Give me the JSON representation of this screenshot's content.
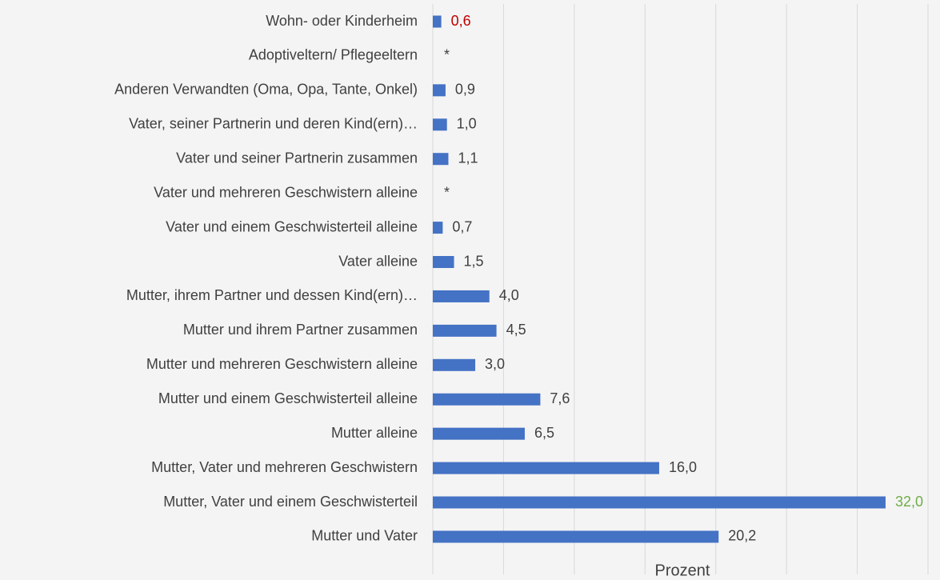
{
  "chart_data": {
    "type": "bar",
    "orientation": "horizontal",
    "x_label": "Prozent",
    "categories": [
      "Wohn- oder Kinderheim",
      "Adoptiveltern/ Pflegeeltern",
      "Anderen Verwandten (Oma, Opa, Tante, Onkel)",
      "Vater, seiner Partnerin und deren Kind(ern)…",
      "Vater und seiner Partnerin zusammen",
      "Vater und mehreren Geschwistern alleine",
      "Vater und einem Geschwisterteil alleine",
      "Vater alleine",
      "Mutter, ihrem Partner und dessen Kind(ern)…",
      "Mutter und ihrem Partner zusammen",
      "Mutter und mehreren Geschwistern alleine",
      "Mutter und einem Geschwisterteil alleine",
      "Mutter alleine",
      "Mutter, Vater und mehreren Geschwistern",
      "Mutter, Vater und einem Geschwisterteil",
      "Mutter und Vater"
    ],
    "values": [
      0.6,
      null,
      0.9,
      1.0,
      1.1,
      null,
      0.7,
      1.5,
      4.0,
      4.5,
      3.0,
      7.6,
      6.5,
      16.0,
      32.0,
      20.2
    ],
    "value_labels": [
      "0,6",
      "*",
      "0,9",
      "1,0",
      "1,1",
      "*",
      "0,7",
      "1,5",
      "4,0",
      "4,5",
      "3,0",
      "7,6",
      "6,5",
      "16,0",
      "32,0",
      "20,2"
    ],
    "value_label_colors": [
      "#c00000",
      "#404040",
      "#404040",
      "#404040",
      "#404040",
      "#404040",
      "#404040",
      "#404040",
      "#404040",
      "#404040",
      "#404040",
      "#404040",
      "#404040",
      "#404040",
      "#70ad47",
      "#404040"
    ],
    "color": "#4472c4",
    "xlim": [
      0,
      35
    ],
    "xticks": [
      0,
      5,
      10,
      15,
      20,
      25,
      30,
      35
    ],
    "grid": true
  }
}
